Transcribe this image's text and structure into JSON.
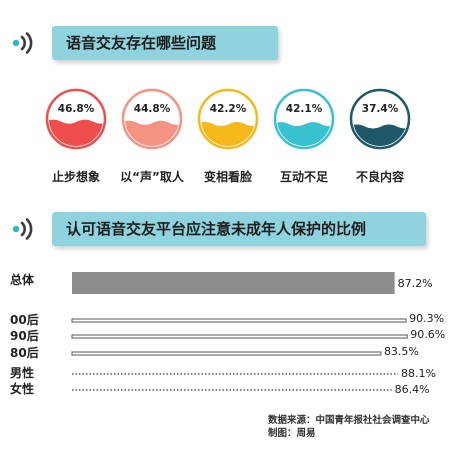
{
  "section1": {
    "title": "语音交友存在哪些问题"
  },
  "section2": {
    "title": "认可语音交友平台应注意未成年人保护的比例"
  },
  "problems": [
    {
      "label": "止步想象",
      "value_text": "46.8%",
      "value": 46.8,
      "color": "#f04d4d"
    },
    {
      "label": "以“声”取人",
      "value_text": "44.8%",
      "value": 44.8,
      "color": "#f59383"
    },
    {
      "label": "变相看脸",
      "value_text": "42.2%",
      "value": 42.2,
      "color": "#f6b91b"
    },
    {
      "label": "互动不足",
      "value_text": "42.1%",
      "value": 42.1,
      "color": "#38c1cf"
    },
    {
      "label": "不良内容",
      "value_text": "37.4%",
      "value": 37.4,
      "color": "#1f5868"
    }
  ],
  "chart_data": {
    "type": "bar",
    "orientation": "horizontal",
    "categories": [
      "总体",
      "00后",
      "90后",
      "80后",
      "男性",
      "女性"
    ],
    "values": [
      87.2,
      90.3,
      90.6,
      83.5,
      88.1,
      86.4
    ],
    "value_labels": [
      "87.2%",
      "90.3%",
      "90.6%",
      "83.5%",
      "88.1%",
      "86.4%"
    ],
    "xlim": [
      0,
      100
    ],
    "grid": false
  },
  "footer": {
    "source": "数据来源：中国青年报社社会调查中心",
    "credit": "制图：周易"
  },
  "colors": {
    "header_bg": "#8fd3df",
    "bar_overall": "#8c8d8f",
    "bar_line": "#555555",
    "icon_wave": "#3b3b3b",
    "icon_dot": "#25b9c9"
  }
}
